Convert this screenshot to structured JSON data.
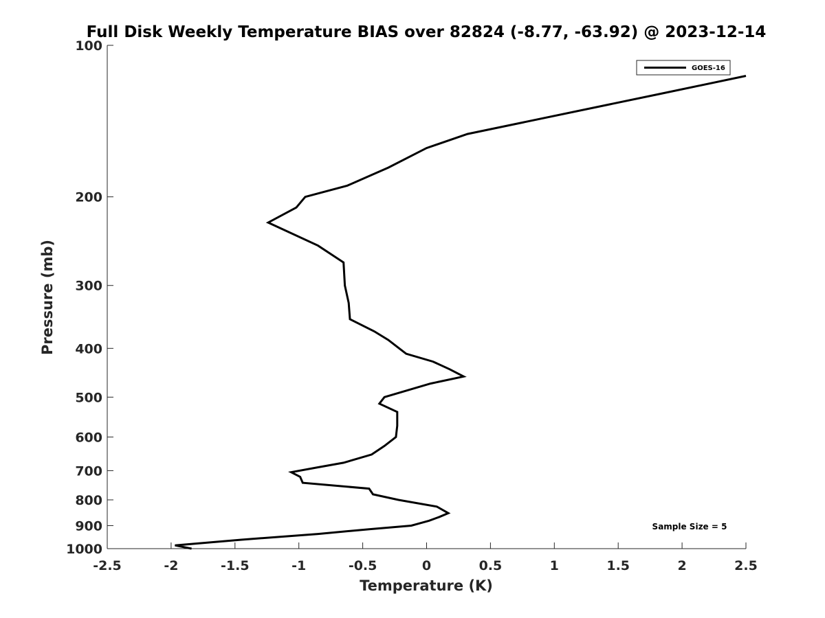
{
  "chart_data": {
    "type": "line",
    "title": "Full Disk Weekly Temperature BIAS over 82824 (-8.77, -63.92) @ 2023-12-14",
    "xlabel": "Temperature (K)",
    "ylabel": "Pressure (mb)",
    "xlim": [
      -2.5,
      2.5
    ],
    "ylim": [
      100,
      1000
    ],
    "y_scale": "log",
    "y_reversed": true,
    "x_ticks": [
      -2.5,
      -2,
      -1.5,
      -1,
      -0.5,
      0,
      0.5,
      1,
      1.5,
      2,
      2.5
    ],
    "x_tick_labels": [
      "-2.5",
      "-2",
      "-1.5",
      "-1",
      "-0.5",
      "0",
      "0.5",
      "1",
      "1.5",
      "2",
      "2.5"
    ],
    "y_ticks": [
      100,
      200,
      300,
      400,
      500,
      600,
      700,
      800,
      900,
      1000
    ],
    "y_tick_labels": [
      "100",
      "200",
      "300",
      "400",
      "500",
      "600",
      "700",
      "800",
      "900",
      "1000"
    ],
    "grid": false,
    "legend_position": "top-right",
    "series": [
      {
        "name": "GOES-16",
        "color": "#000000",
        "points": [
          {
            "x": 2.5,
            "y": 115
          },
          {
            "x": 1.82,
            "y": 125
          },
          {
            "x": 0.32,
            "y": 150
          },
          {
            "x": 0.0,
            "y": 160
          },
          {
            "x": -0.3,
            "y": 175
          },
          {
            "x": -0.62,
            "y": 190
          },
          {
            "x": -0.95,
            "y": 200
          },
          {
            "x": -1.02,
            "y": 210
          },
          {
            "x": -1.24,
            "y": 225
          },
          {
            "x": -0.85,
            "y": 250
          },
          {
            "x": -0.65,
            "y": 270
          },
          {
            "x": -0.64,
            "y": 300
          },
          {
            "x": -0.61,
            "y": 325
          },
          {
            "x": -0.6,
            "y": 350
          },
          {
            "x": -0.41,
            "y": 370
          },
          {
            "x": -0.3,
            "y": 385
          },
          {
            "x": -0.16,
            "y": 410
          },
          {
            "x": 0.05,
            "y": 425
          },
          {
            "x": 0.18,
            "y": 440
          },
          {
            "x": 0.29,
            "y": 455
          },
          {
            "x": 0.03,
            "y": 470
          },
          {
            "x": -0.33,
            "y": 500
          },
          {
            "x": -0.37,
            "y": 515
          },
          {
            "x": -0.23,
            "y": 535
          },
          {
            "x": -0.23,
            "y": 570
          },
          {
            "x": -0.24,
            "y": 600
          },
          {
            "x": -0.33,
            "y": 625
          },
          {
            "x": -0.43,
            "y": 650
          },
          {
            "x": -0.65,
            "y": 675
          },
          {
            "x": -0.86,
            "y": 690
          },
          {
            "x": -1.06,
            "y": 705
          },
          {
            "x": -0.99,
            "y": 720
          },
          {
            "x": -0.97,
            "y": 740
          },
          {
            "x": -0.45,
            "y": 760
          },
          {
            "x": -0.42,
            "y": 780
          },
          {
            "x": -0.22,
            "y": 800
          },
          {
            "x": 0.08,
            "y": 825
          },
          {
            "x": 0.17,
            "y": 850
          },
          {
            "x": 0.1,
            "y": 865
          },
          {
            "x": 0.02,
            "y": 880
          },
          {
            "x": -0.12,
            "y": 900
          },
          {
            "x": -0.45,
            "y": 915
          },
          {
            "x": -0.85,
            "y": 935
          },
          {
            "x": -1.45,
            "y": 960
          },
          {
            "x": -1.97,
            "y": 985
          },
          {
            "x": -1.84,
            "y": 1000
          }
        ]
      }
    ],
    "annotations": [
      {
        "text": "Sample Size = 5",
        "position": "bottom-right"
      }
    ]
  }
}
